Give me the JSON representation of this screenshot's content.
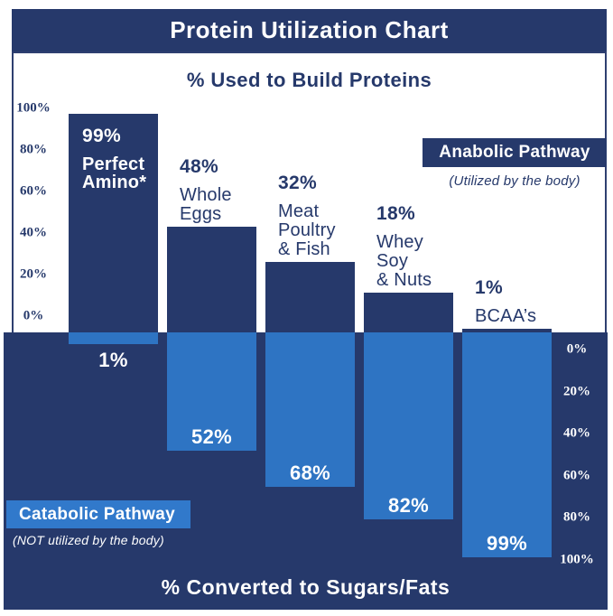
{
  "title": "Protein Utilization Chart",
  "upper_section": {
    "subtitle": "% Used to Build Proteins",
    "axis_ticks": [
      "100%",
      "80%",
      "60%",
      "40%",
      "20%",
      "0%"
    ],
    "legend": {
      "label": "Anabolic Pathway",
      "sublabel": "(Utilized by the body)"
    }
  },
  "lower_section": {
    "subtitle": "% Converted to Sugars/Fats",
    "axis_ticks": [
      "0%",
      "20%",
      "40%",
      "60%",
      "80%",
      "100%"
    ],
    "legend": {
      "label": "Catabolic Pathway",
      "sublabel": "(NOT utilized by the body)"
    }
  },
  "chart_data": {
    "type": "bar",
    "title": "Protein Utilization Chart",
    "categories": [
      "Perfect Amino*",
      "Whole Eggs",
      "Meat Poultry & Fish",
      "Whey Soy & Nuts",
      "BCAA’s"
    ],
    "series": [
      {
        "name": "Anabolic Pathway (% Used to Build Proteins)",
        "values": [
          99,
          48,
          32,
          18,
          1
        ]
      },
      {
        "name": "Catabolic Pathway (% Converted to Sugars/Fats)",
        "values": [
          1,
          52,
          68,
          82,
          99
        ]
      }
    ],
    "ylim_upper": [
      0,
      100
    ],
    "ylim_lower": [
      0,
      100
    ],
    "grid": false,
    "legend_position": "upper-right and lower-left boxes",
    "bars": [
      {
        "anabolic_label": "99%",
        "catabolic_label": "1%",
        "name_lines": [
          "Perfect",
          "Amino*"
        ],
        "label_inside": true
      },
      {
        "anabolic_label": "48%",
        "catabolic_label": "52%",
        "name_lines": [
          "Whole",
          "Eggs"
        ],
        "label_inside": false
      },
      {
        "anabolic_label": "32%",
        "catabolic_label": "68%",
        "name_lines": [
          "Meat",
          "Poultry",
          "& Fish"
        ],
        "label_inside": false
      },
      {
        "anabolic_label": "18%",
        "catabolic_label": "82%",
        "name_lines": [
          "Whey",
          "Soy",
          "& Nuts"
        ],
        "label_inside": false
      },
      {
        "anabolic_label": "1%",
        "catabolic_label": "99%",
        "name_lines": [
          "BCAA’s"
        ],
        "label_inside": false
      }
    ],
    "colors": {
      "navy": "#26396B",
      "bar_blue": "#2E74C3",
      "legend_blue": "#3179CB",
      "text_light": "#FFFFFF",
      "frame_border": "#2E3F70"
    }
  }
}
